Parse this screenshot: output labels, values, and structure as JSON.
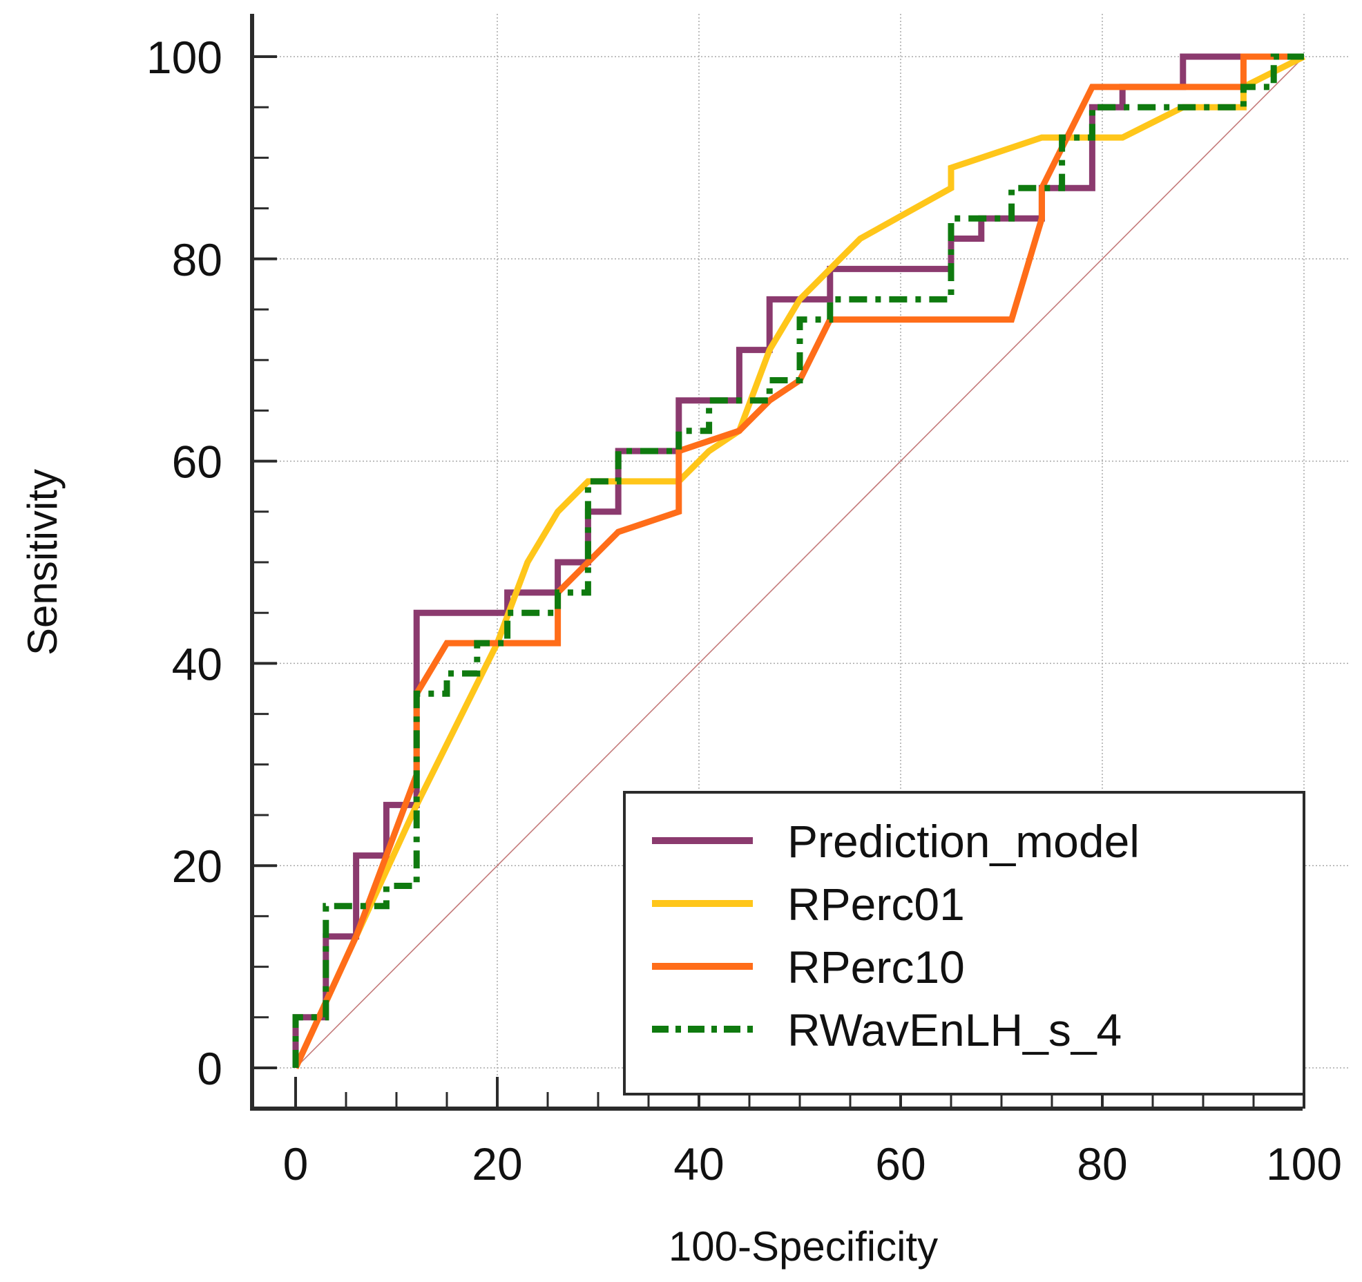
{
  "chart_data": {
    "type": "line",
    "title": "",
    "xlabel": "100-Specificity",
    "ylabel": "Sensitivity",
    "xlim": [
      0,
      100
    ],
    "ylim": [
      0,
      100
    ],
    "xticks": [
      "0",
      "20",
      "40",
      "60",
      "80",
      "100"
    ],
    "yticks": [
      "0",
      "20",
      "40",
      "60",
      "80",
      "100"
    ],
    "grid": true,
    "legend_position": "bottom-right",
    "reference_line": {
      "name": "Reference",
      "color": "#c47a7a",
      "x": [
        0,
        100
      ],
      "y": [
        0,
        100
      ]
    },
    "series": [
      {
        "name": "Prediction_model",
        "color": "#8b3a6e",
        "style": "solid",
        "x": [
          0,
          0,
          3,
          3,
          6,
          6,
          9,
          9,
          12,
          12,
          15,
          21,
          21,
          26,
          26,
          29,
          29,
          32,
          32,
          38,
          38,
          44,
          44,
          47,
          47,
          53,
          53,
          65,
          65,
          68,
          68,
          74,
          74,
          79,
          79,
          82,
          82,
          88,
          88,
          94,
          100
        ],
        "y": [
          0,
          5,
          5,
          13,
          13,
          21,
          21,
          26,
          26,
          45,
          45,
          45,
          47,
          47,
          50,
          50,
          55,
          55,
          61,
          61,
          66,
          66,
          71,
          71,
          76,
          76,
          79,
          79,
          82,
          82,
          84,
          84,
          87,
          87,
          95,
          95,
          97,
          97,
          100,
          100,
          100
        ]
      },
      {
        "name": "RPerc01",
        "color": "#ffc61a",
        "style": "solid",
        "x": [
          0,
          6,
          12,
          20,
          23,
          26,
          29,
          32,
          38,
          41,
          44,
          47,
          50,
          53,
          56,
          65,
          65,
          74,
          79,
          82,
          88,
          94,
          94,
          100
        ],
        "y": [
          0,
          13,
          26,
          42,
          50,
          55,
          58,
          58,
          58,
          61,
          63,
          71,
          76,
          79,
          82,
          87,
          89,
          92,
          92,
          92,
          95,
          95,
          97,
          100
        ]
      },
      {
        "name": "RPerc10",
        "color": "#ff6d19",
        "style": "solid",
        "x": [
          0,
          6,
          12,
          12,
          15,
          20,
          26,
          26,
          29,
          32,
          38,
          38,
          41,
          44,
          47,
          50,
          53,
          62,
          71,
          74,
          74,
          79,
          82,
          88,
          94,
          94,
          100
        ],
        "y": [
          0,
          13,
          29,
          37,
          42,
          42,
          42,
          47,
          50,
          53,
          55,
          61,
          62,
          63,
          66,
          68,
          74,
          74,
          74,
          84,
          87,
          97,
          97,
          97,
          97,
          100,
          100
        ]
      },
      {
        "name": "RWavEnLH_s_4",
        "color": "#0f7a0f",
        "style": "dashdot",
        "x": [
          0,
          0,
          3,
          3,
          6,
          9,
          9,
          12,
          12,
          15,
          15,
          18,
          18,
          21,
          21,
          26,
          26,
          29,
          29,
          32,
          32,
          38,
          38,
          41,
          41,
          47,
          47,
          50,
          50,
          53,
          53,
          65,
          65,
          68,
          68,
          71,
          71,
          76,
          76,
          79,
          79,
          94,
          94,
          97,
          97,
          100
        ],
        "y": [
          0,
          5,
          5,
          16,
          16,
          16,
          18,
          18,
          37,
          37,
          39,
          39,
          42,
          42,
          45,
          45,
          47,
          47,
          58,
          58,
          61,
          61,
          63,
          63,
          66,
          66,
          68,
          68,
          74,
          74,
          76,
          76,
          84,
          84,
          84,
          84,
          87,
          87,
          92,
          92,
          95,
          95,
          97,
          97,
          100,
          100
        ]
      }
    ]
  }
}
